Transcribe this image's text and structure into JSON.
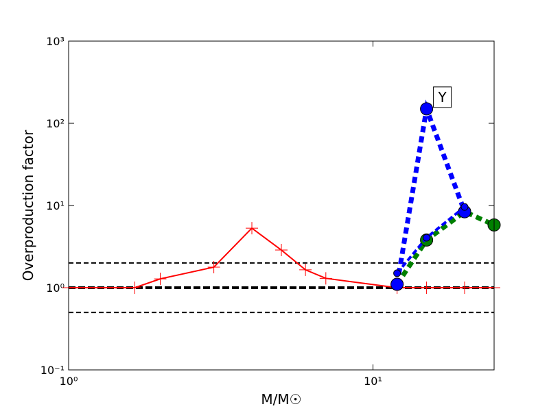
{
  "chart_data": {
    "type": "line",
    "xlabel": "M/M☉",
    "ylabel": "Overproduction factor",
    "xscale": "log",
    "yscale": "log",
    "xlim": [
      1,
      25
    ],
    "ylim": [
      0.1,
      1000
    ],
    "xticks": [
      {
        "value": 1,
        "label": "10⁰"
      },
      {
        "value": 10,
        "label": "10¹"
      }
    ],
    "yticks": [
      {
        "value": 0.1,
        "label": "10⁻¹"
      },
      {
        "value": 1,
        "label": "10⁰"
      },
      {
        "value": 10,
        "label": "10¹"
      },
      {
        "value": 100,
        "label": "10²"
      },
      {
        "value": 1000,
        "label": "10³"
      }
    ],
    "reference_lines": [
      {
        "value": 2,
        "bold": false
      },
      {
        "value": 1,
        "bold": true
      },
      {
        "value": 0.5,
        "bold": false
      }
    ],
    "annotation": "Y",
    "series": [
      {
        "color": "#ff0000",
        "linestyle": "solid",
        "linewidth": "thin",
        "marker": "plus",
        "x": [
          1,
          1.65,
          2,
          3,
          4,
          5,
          6,
          7,
          12,
          15,
          20,
          25
        ],
        "values": [
          1,
          1,
          1.28,
          1.78,
          5.3,
          2.87,
          1.65,
          1.3,
          1,
          1,
          1,
          1
        ]
      },
      {
        "color": "#008000",
        "linestyle": "dotted",
        "linewidth": "thick",
        "marker": "circle",
        "x": [
          12,
          15,
          20,
          25
        ],
        "values": [
          1.1,
          3.8,
          8.4,
          5.8
        ]
      },
      {
        "color": "#0000ff",
        "linestyle": "dotted",
        "linewidth": "thick",
        "marker": "circle",
        "x": [
          12,
          15,
          20
        ],
        "values": [
          1.1,
          150,
          8.4
        ]
      },
      {
        "color": "#0000ff",
        "linestyle": "dashed",
        "linewidth": "thin",
        "marker": "small-circle",
        "x": [
          12,
          15,
          20
        ],
        "values": [
          1.5,
          4.06,
          9.6
        ]
      }
    ]
  }
}
